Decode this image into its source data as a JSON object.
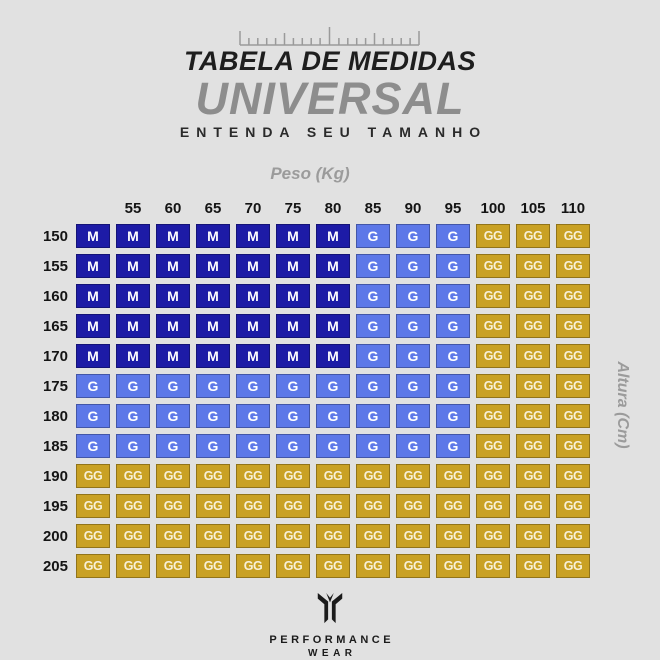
{
  "header": {
    "title": "TABELA DE MEDIDAS",
    "subtitle": "UNIVERSAL",
    "tagline": "ENTENDA SEU TAMANHO"
  },
  "chart_data": {
    "type": "heatmap",
    "title": "TABELA DE MEDIDAS UNIVERSAL",
    "subtitle": "ENTENDA SEU TAMANHO",
    "xlabel": "Peso (Kg)",
    "ylabel": "Altura (Cm)",
    "columns": [
      "",
      "55",
      "60",
      "65",
      "70",
      "75",
      "80",
      "85",
      "90",
      "95",
      "100",
      "105",
      "110"
    ],
    "rows": [
      "150",
      "155",
      "160",
      "165",
      "170",
      "175",
      "180",
      "185",
      "190",
      "195",
      "200",
      "205"
    ],
    "cells": [
      [
        "M",
        "M",
        "M",
        "M",
        "M",
        "M",
        "M",
        "G",
        "G",
        "G",
        "GG",
        "GG",
        "GG"
      ],
      [
        "M",
        "M",
        "M",
        "M",
        "M",
        "M",
        "M",
        "G",
        "G",
        "G",
        "GG",
        "GG",
        "GG"
      ],
      [
        "M",
        "M",
        "M",
        "M",
        "M",
        "M",
        "M",
        "G",
        "G",
        "G",
        "GG",
        "GG",
        "GG"
      ],
      [
        "M",
        "M",
        "M",
        "M",
        "M",
        "M",
        "M",
        "G",
        "G",
        "G",
        "GG",
        "GG",
        "GG"
      ],
      [
        "M",
        "M",
        "M",
        "M",
        "M",
        "M",
        "M",
        "G",
        "G",
        "G",
        "GG",
        "GG",
        "GG"
      ],
      [
        "G",
        "G",
        "G",
        "G",
        "G",
        "G",
        "G",
        "G",
        "G",
        "G",
        "GG",
        "GG",
        "GG"
      ],
      [
        "G",
        "G",
        "G",
        "G",
        "G",
        "G",
        "G",
        "G",
        "G",
        "G",
        "GG",
        "GG",
        "GG"
      ],
      [
        "G",
        "G",
        "G",
        "G",
        "G",
        "G",
        "G",
        "G",
        "G",
        "G",
        "GG",
        "GG",
        "GG"
      ],
      [
        "GG",
        "GG",
        "GG",
        "GG",
        "GG",
        "GG",
        "GG",
        "GG",
        "GG",
        "GG",
        "GG",
        "GG",
        "GG"
      ],
      [
        "GG",
        "GG",
        "GG",
        "GG",
        "GG",
        "GG",
        "GG",
        "GG",
        "GG",
        "GG",
        "GG",
        "GG",
        "GG"
      ],
      [
        "GG",
        "GG",
        "GG",
        "GG",
        "GG",
        "GG",
        "GG",
        "GG",
        "GG",
        "GG",
        "GG",
        "GG",
        "GG"
      ],
      [
        "GG",
        "GG",
        "GG",
        "GG",
        "GG",
        "GG",
        "GG",
        "GG",
        "GG",
        "GG",
        "GG",
        "GG",
        "GG"
      ]
    ],
    "legend": {
      "M": "#1d1ba6",
      "G": "#5d78e8",
      "GG": "#c9a124"
    },
    "layout": {
      "grid": "off",
      "legend_position": "none"
    }
  },
  "colors": {
    "background": "#e1e1e1",
    "title_dark": "#1e1e1e",
    "title_gray": "#8d8d8d",
    "axis_gray": "#9b9b9b"
  },
  "footer": {
    "brand_line1": "PERFORMANCE",
    "brand_line2": "WEAR"
  }
}
